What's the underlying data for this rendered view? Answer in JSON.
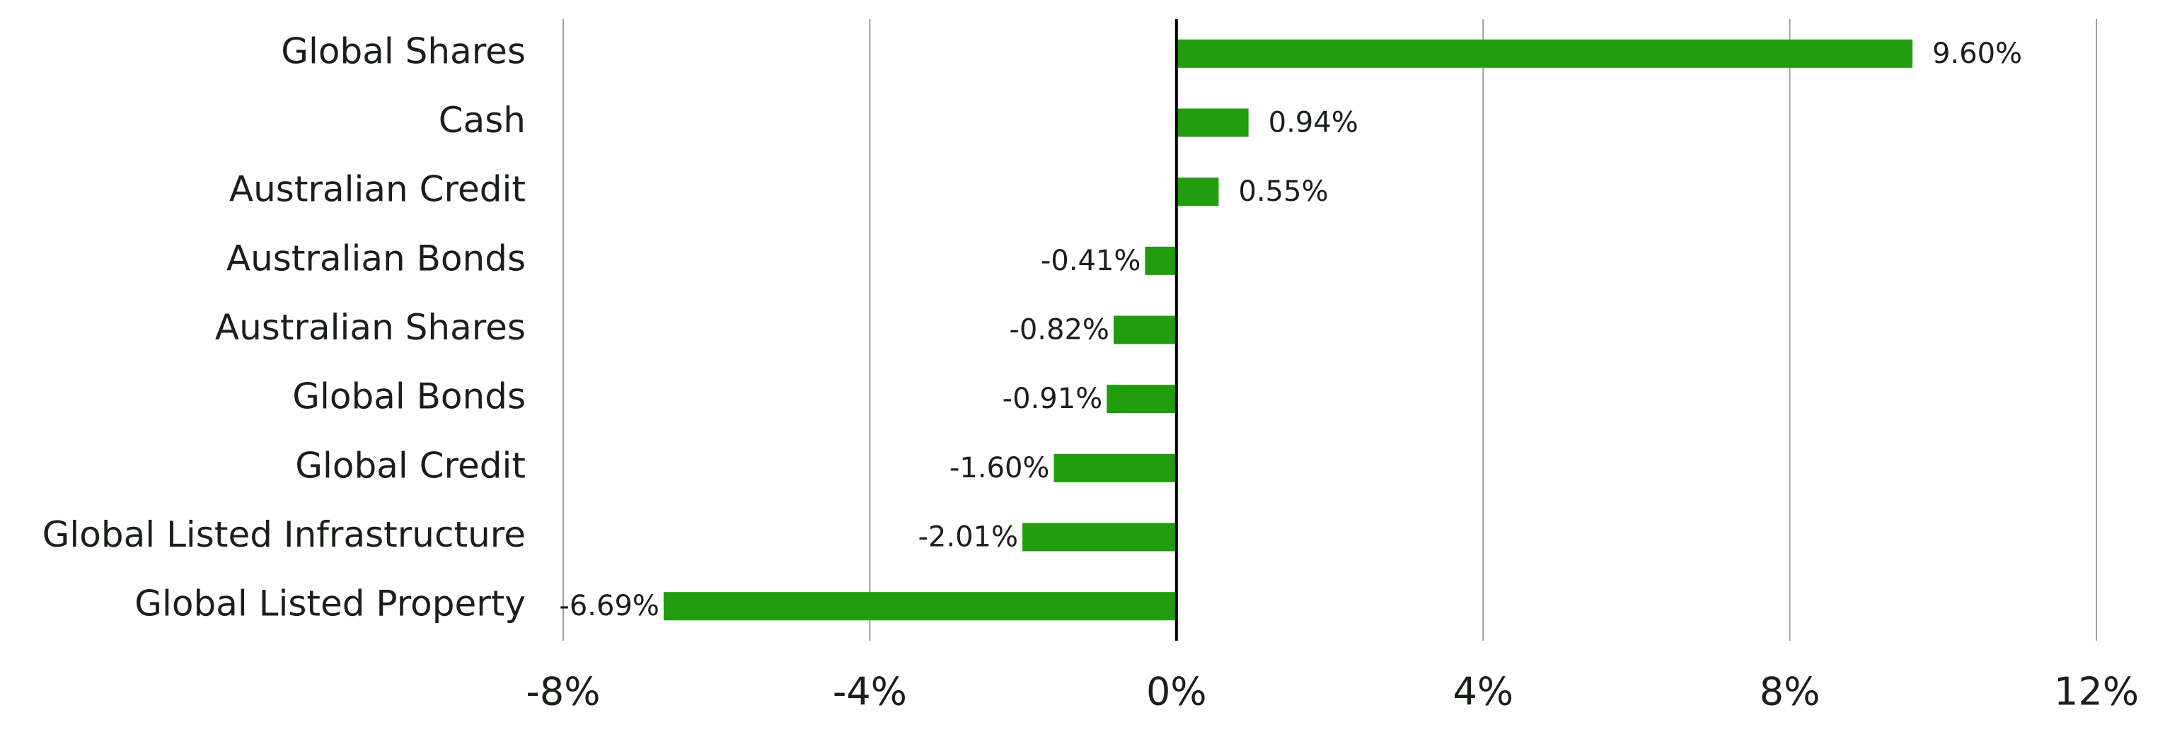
{
  "chart_data": {
    "type": "bar",
    "orientation": "horizontal",
    "categories": [
      "Global Shares",
      "Cash",
      "Australian Credit",
      "Australian Bonds",
      "Australian Shares",
      "Global Bonds",
      "Global Credit",
      "Global Listed Infrastructure",
      "Global Listed Property"
    ],
    "values": [
      9.6,
      0.94,
      0.55,
      -0.41,
      -0.82,
      -0.91,
      -1.6,
      -2.01,
      -6.69
    ],
    "value_labels": [
      "9.60%",
      "0.94%",
      "0.55%",
      "-0.41%",
      "-0.82%",
      "-0.91%",
      "-1.60%",
      "-2.01%",
      "-6.69%"
    ],
    "color": "#209c0c",
    "xlim": [
      -8,
      12
    ],
    "xticks": [
      {
        "value": -8,
        "label": "-8%"
      },
      {
        "value": -4,
        "label": "-4%"
      },
      {
        "value": 0,
        "label": "0%"
      },
      {
        "value": 4,
        "label": "4%"
      },
      {
        "value": 8,
        "label": "8%"
      },
      {
        "value": 12,
        "label": "12%"
      }
    ],
    "grid": true
  }
}
